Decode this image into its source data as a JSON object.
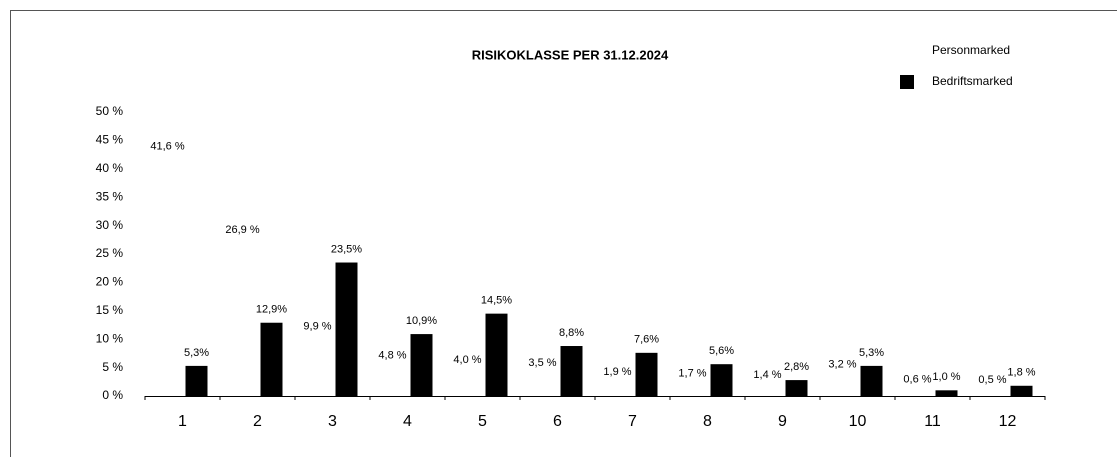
{
  "chart_data": {
    "type": "bar",
    "title": "RISIKOKLASSE PER 31.12.2024",
    "categories": [
      "1",
      "2",
      "3",
      "4",
      "5",
      "6",
      "7",
      "8",
      "9",
      "10",
      "11",
      "12"
    ],
    "series": [
      {
        "name": "Personmarked",
        "color": "#ffffff",
        "values": [
          41.6,
          26.9,
          9.9,
          4.8,
          4.0,
          3.5,
          1.9,
          1.7,
          1.4,
          3.2,
          0.6,
          0.5
        ],
        "value_labels": [
          "41,6 %",
          "26,9 %",
          "9,9 %",
          "4,8 %",
          "4,0 %",
          "3,5 %",
          "1,9 %",
          "1,7 %",
          "1,4 %",
          "3,2 %",
          "0,6 %",
          "0,5 %"
        ]
      },
      {
        "name": "Bedriftsmarked",
        "color": "#000000",
        "values": [
          5.3,
          12.9,
          23.5,
          10.9,
          14.5,
          8.8,
          7.6,
          5.6,
          2.8,
          5.3,
          1.0,
          1.8
        ],
        "value_labels": [
          "5,3%",
          "12,9%",
          "23,5%",
          "10,9%",
          "14,5%",
          "8,8%",
          "7,6%",
          "5,6%",
          "2,8%",
          "5,3%",
          "1,0 %",
          "1,8 %"
        ]
      }
    ],
    "ylim": [
      0,
      50
    ],
    "yticks": [
      {
        "value": 0,
        "label": "0 %"
      },
      {
        "value": 5,
        "label": "5 %"
      },
      {
        "value": 10,
        "label": "10 %"
      },
      {
        "value": 15,
        "label": "15 %"
      },
      {
        "value": 20,
        "label": "20 %"
      },
      {
        "value": 25,
        "label": "25 %"
      },
      {
        "value": 30,
        "label": "30 %"
      },
      {
        "value": 35,
        "label": "35 %"
      },
      {
        "value": 40,
        "label": "40 %"
      },
      {
        "value": 45,
        "label": "45 %"
      },
      {
        "value": 50,
        "label": "50 %"
      }
    ],
    "grid": false,
    "legend": "top-right"
  }
}
